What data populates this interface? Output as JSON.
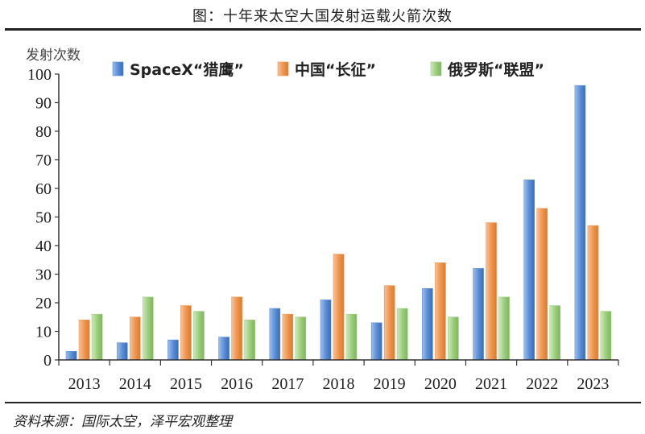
{
  "title": "图：十年来太空大国发射运载火箭次数",
  "source": "资料来源：国际太空，泽平宏观整理",
  "chart_data": {
    "type": "bar",
    "ylabel": "发射次数",
    "ylim": [
      0,
      100
    ],
    "yticks": [
      0,
      10,
      20,
      30,
      40,
      50,
      60,
      70,
      80,
      90,
      100
    ],
    "categories": [
      "2013",
      "2014",
      "2015",
      "2016",
      "2017",
      "2018",
      "2019",
      "2020",
      "2021",
      "2022",
      "2023"
    ],
    "legend_position": "top",
    "series": [
      {
        "name": "SpaceX“猎鹰”",
        "color": "#5b8fd6",
        "values": [
          3,
          6,
          7,
          8,
          18,
          21,
          13,
          25,
          32,
          63,
          96
        ]
      },
      {
        "name": "中国“长征”",
        "color": "#f0964e",
        "values": [
          14,
          15,
          19,
          22,
          16,
          37,
          26,
          34,
          48,
          53,
          47
        ]
      },
      {
        "name": "俄罗斯“联盟”",
        "color": "#9ccf7c",
        "values": [
          16,
          22,
          17,
          14,
          15,
          16,
          18,
          15,
          22,
          19,
          17
        ]
      }
    ]
  }
}
